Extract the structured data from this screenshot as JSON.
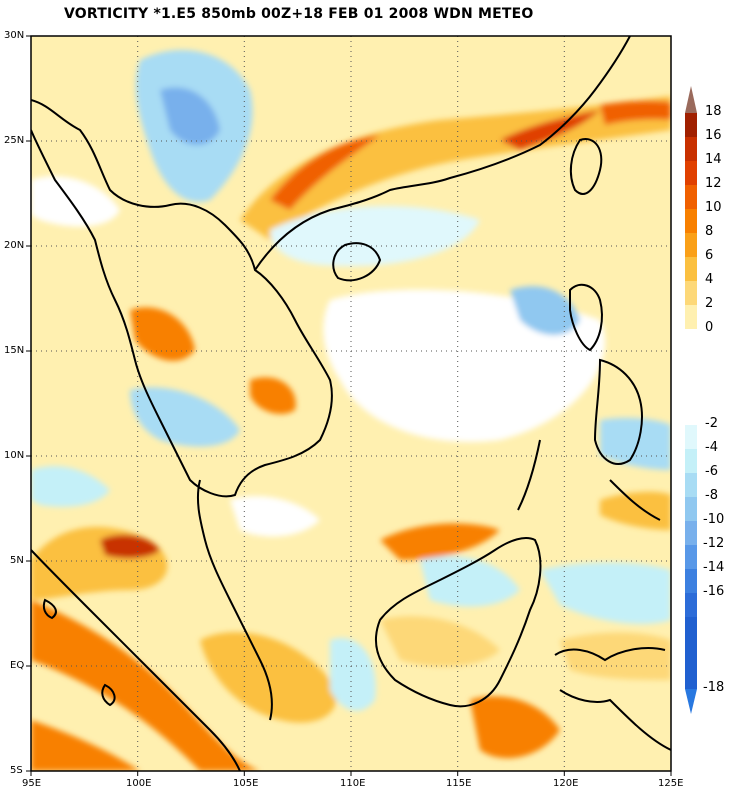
{
  "title": "VORTICITY *1.E5 850mb 00Z+18 FEB 01 2008 WDN METEO",
  "map": {
    "lon_range": [
      95,
      125
    ],
    "lat_range": [
      -5,
      30
    ],
    "lon_ticks": [
      "95E",
      "100E",
      "105E",
      "110E",
      "115E",
      "120E",
      "125E"
    ],
    "lat_ticks": [
      "30N",
      "25N",
      "20N",
      "15N",
      "10N",
      "5N",
      "EQ",
      "5S"
    ],
    "field": "vorticity",
    "gridlines": "dotted"
  },
  "legend": {
    "positive": [
      {
        "label": "18",
        "color": "#a02000"
      },
      {
        "label": "16",
        "color": "#c83000"
      },
      {
        "label": "14",
        "color": "#e04000"
      },
      {
        "label": "12",
        "color": "#f06000"
      },
      {
        "label": "10",
        "color": "#f88000"
      },
      {
        "label": "8",
        "color": "#faa018"
      },
      {
        "label": "6",
        "color": "#fbc040"
      },
      {
        "label": "4",
        "color": "#fdd878"
      },
      {
        "label": "2",
        "color": "#fff0b0"
      },
      {
        "label": "0",
        "color": "#ffffff"
      }
    ],
    "negative": [
      {
        "label": "-2",
        "color": "#e0f8fc"
      },
      {
        "label": "-4",
        "color": "#c4f0f8"
      },
      {
        "label": "-6",
        "color": "#a8dcf4"
      },
      {
        "label": "-8",
        "color": "#90c8f0"
      },
      {
        "label": "-10",
        "color": "#78b0ec"
      },
      {
        "label": "-12",
        "color": "#5898e8"
      },
      {
        "label": "-14",
        "color": "#3c80e0"
      },
      {
        "label": "-16",
        "color": "#2c6cd8"
      },
      {
        "label": "-18",
        "color": "#2060d0"
      }
    ],
    "top_arrow_color": "#9a6a5c",
    "bottom_arrow_color": "#2878e0"
  }
}
